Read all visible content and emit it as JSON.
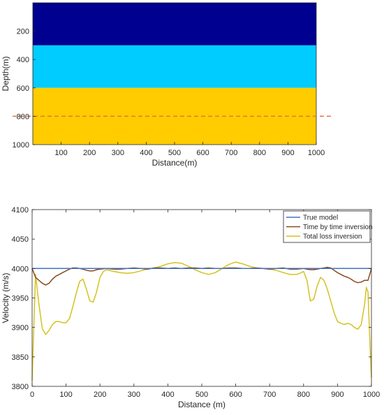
{
  "chart_data": [
    {
      "type": "heatmap",
      "xlabel": "Distance(m)",
      "ylabel": "Depth(m)",
      "xlim": [
        0,
        1000
      ],
      "ylim": [
        0,
        1000
      ],
      "y_reversed": true,
      "xticks": [
        "100",
        "200",
        "300",
        "400",
        "500",
        "600",
        "700",
        "800",
        "900",
        "1000"
      ],
      "yticks": [
        "200",
        "400",
        "600",
        "800",
        "1000"
      ],
      "layers": [
        {
          "depth_from": 0,
          "depth_to": 300,
          "color": "#000090"
        },
        {
          "depth_from": 300,
          "depth_to": 600,
          "color": "#00CCFF"
        },
        {
          "depth_from": 600,
          "depth_to": 1000,
          "color": "#FFCC00"
        }
      ],
      "reference_line": {
        "depth": 800,
        "style": "dashed",
        "color": "#E8743B"
      }
    },
    {
      "type": "line",
      "xlabel": "Distance (m)",
      "ylabel": "Velocity (m/s)",
      "xlim": [
        0,
        1000
      ],
      "ylim": [
        3800,
        4100
      ],
      "xticks": [
        "0",
        "100",
        "200",
        "300",
        "400",
        "500",
        "600",
        "700",
        "800",
        "900",
        "1000"
      ],
      "yticks": [
        "3800",
        "3850",
        "3900",
        "3950",
        "4000",
        "4050",
        "4100"
      ],
      "legend_position": "top-right",
      "series": [
        {
          "name": "True model",
          "color": "#4472C4",
          "x": [
            0,
            1000
          ],
          "y": [
            4000,
            4000
          ]
        },
        {
          "name": "Time by time inversion",
          "color": "#8B4A1C",
          "x": [
            0,
            10,
            20,
            30,
            40,
            50,
            60,
            70,
            80,
            90,
            100,
            110,
            120,
            130,
            140,
            150,
            160,
            170,
            180,
            190,
            200,
            220,
            240,
            260,
            280,
            300,
            320,
            340,
            360,
            380,
            400,
            420,
            440,
            460,
            480,
            500,
            520,
            540,
            560,
            580,
            600,
            620,
            640,
            660,
            680,
            700,
            720,
            740,
            760,
            780,
            800,
            810,
            820,
            830,
            840,
            850,
            860,
            870,
            880,
            890,
            900,
            910,
            920,
            930,
            940,
            950,
            960,
            970,
            980,
            990,
            1000
          ],
          "y": [
            4000,
            3985,
            3980,
            3975,
            3972,
            3975,
            3982,
            3987,
            3990,
            3993,
            3996,
            3999,
            4001,
            4001,
            4000,
            3999,
            3997,
            3996,
            3996,
            3998,
            3999,
            4000,
            3999,
            3999,
            4000,
            4001,
            4000,
            3999,
            4001,
            4001,
            4000,
            4001,
            4000,
            4001,
            4001,
            4000,
            4001,
            4000,
            4000,
            4001,
            4001,
            4000,
            4000,
            4001,
            4000,
            3999,
            4000,
            4001,
            3999,
            3999,
            4000,
            3999,
            3998,
            3998,
            3999,
            4000,
            4001,
            4002,
            4001,
            3997,
            3993,
            3990,
            3987,
            3985,
            3982,
            3978,
            3976,
            3977,
            3980,
            3980,
            4000
          ]
        },
        {
          "name": "Total loss inversion",
          "color": "#D4C21F",
          "x": [
            0,
            5,
            10,
            20,
            30,
            40,
            50,
            60,
            70,
            80,
            90,
            100,
            110,
            120,
            130,
            140,
            150,
            160,
            170,
            180,
            190,
            200,
            210,
            220,
            240,
            260,
            280,
            300,
            320,
            340,
            360,
            380,
            400,
            420,
            440,
            460,
            480,
            500,
            520,
            540,
            560,
            580,
            600,
            620,
            640,
            660,
            680,
            700,
            720,
            740,
            760,
            780,
            790,
            800,
            810,
            820,
            830,
            840,
            850,
            860,
            870,
            880,
            890,
            900,
            910,
            920,
            930,
            940,
            950,
            960,
            970,
            980,
            985,
            990,
            995,
            1000
          ],
          "y": [
            3810,
            3900,
            3990,
            3940,
            3898,
            3888,
            3895,
            3905,
            3910,
            3910,
            3908,
            3908,
            3915,
            3935,
            3958,
            3978,
            3982,
            3965,
            3945,
            3943,
            3960,
            3985,
            3995,
            3998,
            3995,
            3993,
            3992,
            3993,
            3996,
            3999,
            4001,
            4004,
            4008,
            4010,
            4009,
            4004,
            3998,
            3993,
            3990,
            3993,
            4000,
            4007,
            4011,
            4008,
            4004,
            4001,
            4000,
            3999,
            3997,
            3993,
            3990,
            3990,
            3992,
            3995,
            3980,
            3945,
            3948,
            3970,
            3985,
            3980,
            3965,
            3945,
            3925,
            3910,
            3907,
            3905,
            3907,
            3905,
            3900,
            3897,
            3905,
            3940,
            3968,
            3960,
            3880,
            3815
          ]
        }
      ]
    }
  ]
}
